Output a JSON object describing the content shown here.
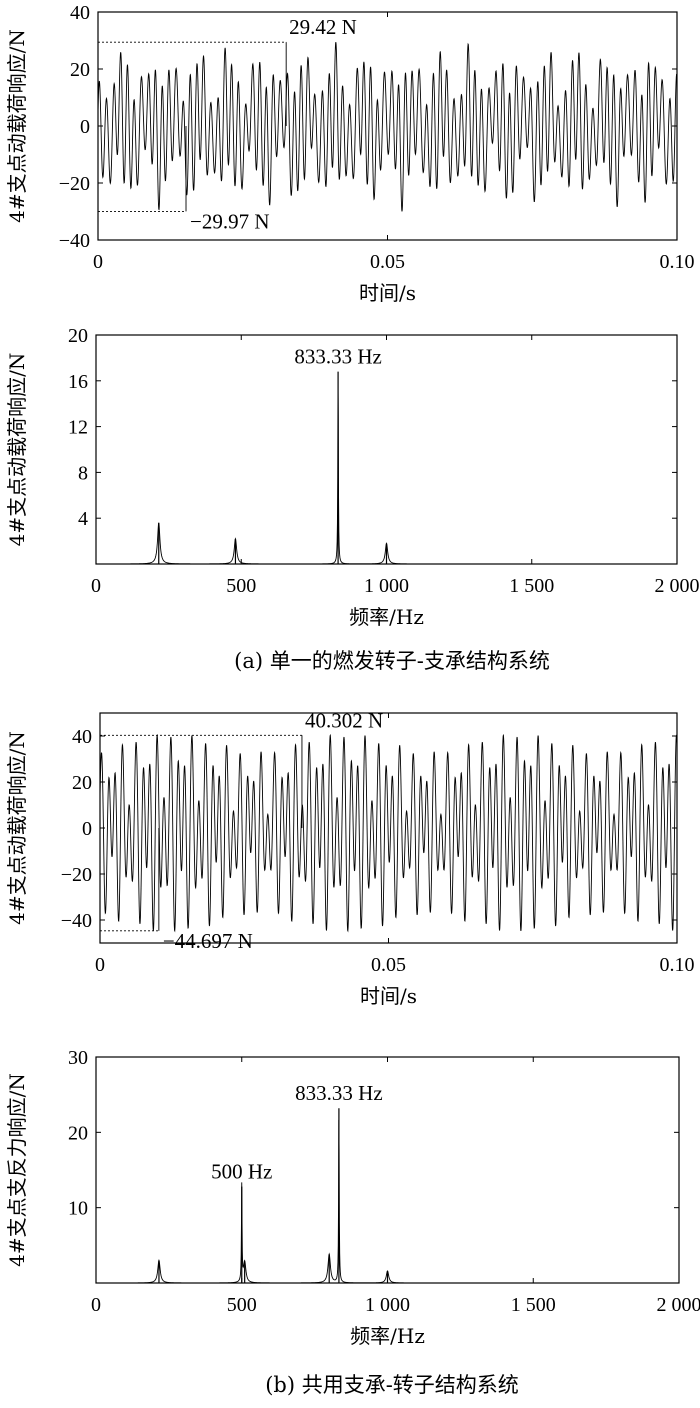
{
  "figure": {
    "caption_a": "(a) 单一的燃发转子-支承结构系统",
    "caption_b": "(b) 共用支承-转子结构系统"
  },
  "chart_data": [
    {
      "id": "a_time",
      "type": "line",
      "xlabel": "时间/s",
      "ylabel": "4#支点动载荷响应/N",
      "xlim": [
        0,
        0.1
      ],
      "ylim": [
        -40,
        40
      ],
      "xticks": [
        0,
        0.05,
        0.1
      ],
      "xtick_labels": [
        "0",
        "0.05",
        "0.10"
      ],
      "yticks": [
        -40,
        -20,
        0,
        20,
        40
      ],
      "ytick_labels": [
        "−40",
        "−20",
        "0",
        "20",
        "40"
      ],
      "series": [
        {
          "signal": "sum of sinusoids",
          "components": [
            {
              "freq_hz": 833.33,
              "amp": 16.5
            },
            {
              "freq_hz": 1000,
              "amp": 4
            },
            {
              "freq_hz": 216,
              "amp": 6
            },
            {
              "freq_hz": 480,
              "amp": 3
            }
          ],
          "max": 29.42,
          "min": -29.97
        }
      ],
      "annotations": [
        {
          "text": "29.42 N",
          "x": 0.0325,
          "y": 29.42
        },
        {
          "text": "−29.97 N",
          "x": 0.0152,
          "y": -29.97
        }
      ],
      "grid": false
    },
    {
      "id": "a_freq",
      "type": "line",
      "xlabel": "频率/Hz",
      "ylabel": "4#支点动载荷响应/N",
      "xlim": [
        0,
        2000
      ],
      "ylim": [
        0,
        20
      ],
      "xticks": [
        0,
        500,
        1000,
        1500,
        2000
      ],
      "xtick_labels": [
        "0",
        "500",
        "1 000",
        "1 500",
        "2 000"
      ],
      "yticks": [
        4,
        8,
        12,
        16,
        20
      ],
      "ytick_labels": [
        "4",
        "8",
        "12",
        "16",
        "20"
      ],
      "peaks": [
        {
          "x": 216,
          "y": 3.6
        },
        {
          "x": 480,
          "y": 2.2
        },
        {
          "x": 833.33,
          "y": 16.8
        },
        {
          "x": 1000,
          "y": 1.8
        }
      ],
      "annotations": [
        {
          "text": "833.33 Hz",
          "x": 833.33,
          "y": 16.8
        }
      ],
      "grid": false
    },
    {
      "id": "b_time",
      "type": "line",
      "xlabel": "时间/s",
      "ylabel": "4#支点动载荷响应/N",
      "xlim": [
        0,
        0.1
      ],
      "ylim": [
        -50,
        50
      ],
      "xticks": [
        0,
        0.05,
        0.1
      ],
      "xtick_labels": [
        "0",
        "0.05",
        "0.10"
      ],
      "yticks": [
        -40,
        -20,
        0,
        20,
        40
      ],
      "ytick_labels": [
        "−40",
        "−20",
        "0",
        "20",
        "40"
      ],
      "series": [
        {
          "signal": "sum of sinusoids",
          "components": [
            {
              "freq_hz": 833.33,
              "amp": 23
            },
            {
              "freq_hz": 500,
              "amp": 12.5
            },
            {
              "freq_hz": 800,
              "amp": 3.5
            },
            {
              "freq_hz": 1000,
              "amp": 2
            }
          ],
          "max": 40.302,
          "min": -44.697
        }
      ],
      "annotations": [
        {
          "text": "40.302 N",
          "x": 0.035,
          "y": 40.302
        },
        {
          "text": "−44.697 N",
          "x": 0.0102,
          "y": -44.697
        }
      ],
      "grid": false
    },
    {
      "id": "b_freq",
      "type": "line",
      "xlabel": "频率/Hz",
      "ylabel": "4#支点支反力响应/N",
      "xlim": [
        0,
        2000
      ],
      "ylim": [
        0,
        30
      ],
      "xticks": [
        0,
        500,
        1000,
        1500,
        2000
      ],
      "xtick_labels": [
        "0",
        "500",
        "1 000",
        "1 500",
        "2 000"
      ],
      "yticks": [
        10,
        20,
        30
      ],
      "ytick_labels": [
        "10",
        "20",
        "30"
      ],
      "peaks": [
        {
          "x": 216,
          "y": 3.0
        },
        {
          "x": 500,
          "y": 12.8
        },
        {
          "x": 510,
          "y": 2.8
        },
        {
          "x": 800,
          "y": 3.8
        },
        {
          "x": 833.33,
          "y": 23.2
        },
        {
          "x": 1000,
          "y": 1.6
        }
      ],
      "annotations": [
        {
          "text": "500 Hz",
          "x": 500,
          "y": 12.8
        },
        {
          "text": "833.33 Hz",
          "x": 833.33,
          "y": 23.2
        }
      ],
      "grid": false
    }
  ]
}
